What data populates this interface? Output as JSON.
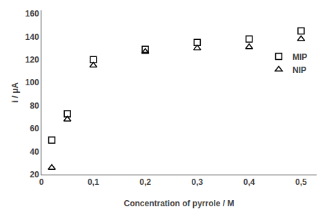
{
  "chart_data": {
    "type": "scatter",
    "xlabel": "Concentration of pyrrole / M",
    "ylabel": "i / μA",
    "x": [
      0.02,
      0.05,
      0.1,
      0.2,
      0.3,
      0.4,
      0.5
    ],
    "series": [
      {
        "name": "MIP",
        "color": "#000000",
        "marker": "square-open",
        "values": [
          50,
          73,
          120,
          129,
          135,
          138,
          145
        ]
      },
      {
        "name": "NIP",
        "color": "#000000",
        "marker": "triangle-up-open",
        "values": [
          26,
          68,
          115,
          127,
          130,
          131,
          138
        ]
      }
    ],
    "xlim": [
      0,
      0.53
    ],
    "ylim": [
      20,
      163
    ],
    "xticks": [
      0,
      {
        "value": 0.1,
        "label": "0,1"
      },
      {
        "value": 0.2,
        "label": "0,2"
      },
      {
        "value": 0.3,
        "label": "0,3"
      },
      {
        "value": 0.4,
        "label": "0,4"
      },
      {
        "value": 0.5,
        "label": "0,5"
      }
    ],
    "yticks": [
      20,
      40,
      60,
      80,
      100,
      120,
      140,
      160
    ],
    "grid": false,
    "legend": "upper right"
  }
}
